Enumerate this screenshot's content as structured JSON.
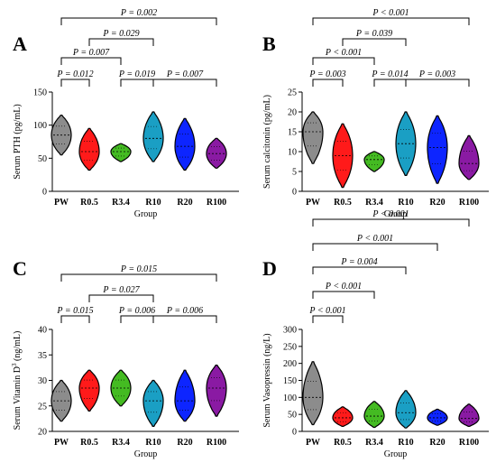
{
  "palette": {
    "PW": "#8c8c8c",
    "R0.5": "#ff1a1a",
    "R3.4": "#44bb22",
    "R10": "#1a9fc4",
    "R20": "#0d25ff",
    "R100": "#8a1aa3"
  },
  "chart_data": [
    {
      "type": "violin",
      "panel": "A",
      "ylabel": "Serum PTH (pg/mL)",
      "xlabel": "Group",
      "ylim": [
        0,
        150
      ],
      "yticks": [
        0,
        50,
        100,
        150
      ],
      "categories": [
        "PW",
        "R0.5",
        "R3.4",
        "R10",
        "R20",
        "R100"
      ],
      "ranges": [
        [
          55,
          115
        ],
        [
          32,
          95
        ],
        [
          45,
          72
        ],
        [
          45,
          120
        ],
        [
          32,
          110
        ],
        [
          35,
          80
        ]
      ],
      "medians": [
        85,
        60,
        60,
        80,
        68,
        57
      ],
      "comparisons": [
        {
          "from": "PW",
          "to": "R0.5",
          "label": "P = 0.012"
        },
        {
          "from": "R3.4",
          "to": "R10",
          "label": "P = 0.019"
        },
        {
          "from": "R10",
          "to": "R100",
          "label": "P = 0.007"
        },
        {
          "from": "PW",
          "to": "R3.4",
          "label": "P = 0.007"
        },
        {
          "from": "R0.5",
          "to": "R10",
          "label": "P = 0.029"
        },
        {
          "from": "PW",
          "to": "R100",
          "label": "P = 0.002"
        }
      ]
    },
    {
      "type": "violin",
      "panel": "B",
      "ylabel": "Serum calcitonin (pg/mL)",
      "xlabel": "Group",
      "ylim": [
        0,
        25
      ],
      "yticks": [
        0,
        5,
        10,
        15,
        20,
        25
      ],
      "categories": [
        "PW",
        "R0.5",
        "R3.4",
        "R10",
        "R20",
        "R100"
      ],
      "ranges": [
        [
          7,
          20
        ],
        [
          1,
          17
        ],
        [
          5,
          10
        ],
        [
          4,
          20
        ],
        [
          2,
          19
        ],
        [
          3,
          14
        ]
      ],
      "medians": [
        15,
        9,
        8,
        12,
        11,
        7
      ],
      "comparisons": [
        {
          "from": "PW",
          "to": "R0.5",
          "label": "P = 0.003"
        },
        {
          "from": "R3.4",
          "to": "R10",
          "label": "P = 0.014"
        },
        {
          "from": "R10",
          "to": "R100",
          "label": "P = 0.003"
        },
        {
          "from": "PW",
          "to": "R3.4",
          "label": "P < 0.001"
        },
        {
          "from": "R0.5",
          "to": "R10",
          "label": "P = 0.039"
        },
        {
          "from": "PW",
          "to": "R100",
          "label": "P < 0.001"
        }
      ]
    },
    {
      "type": "violin",
      "panel": "C",
      "ylabel": "Serum Vitamin D",
      "ylabel_sup": "3",
      "ylabel_unit": " (ng/mL)",
      "xlabel": "Group",
      "ylim": [
        20,
        40
      ],
      "yticks": [
        20,
        25,
        30,
        35,
        40
      ],
      "categories": [
        "PW",
        "R0.5",
        "R3.4",
        "R10",
        "R20",
        "R100"
      ],
      "ranges": [
        [
          22,
          30
        ],
        [
          24,
          32
        ],
        [
          25,
          32
        ],
        [
          21,
          30
        ],
        [
          22,
          32
        ],
        [
          23,
          33
        ]
      ],
      "medians": [
        26,
        28.5,
        28.5,
        26,
        26,
        28.5
      ],
      "comparisons": [
        {
          "from": "PW",
          "to": "R0.5",
          "label": "P = 0.015"
        },
        {
          "from": "R3.4",
          "to": "R10",
          "label": "P = 0.006"
        },
        {
          "from": "R10",
          "to": "R100",
          "label": "P = 0.006"
        },
        {
          "from": "R0.5",
          "to": "R10",
          "label": "P = 0.027"
        },
        {
          "from": "PW",
          "to": "R100",
          "label": "P = 0.015"
        }
      ]
    },
    {
      "type": "violin",
      "panel": "D",
      "ylabel": "Serum Vasopressin (ng/L)",
      "xlabel": "Group",
      "ylim": [
        0,
        300
      ],
      "yticks": [
        0,
        50,
        100,
        150,
        200,
        250,
        300
      ],
      "categories": [
        "PW",
        "R0.5",
        "R3.4",
        "R10",
        "R20",
        "R100"
      ],
      "ranges": [
        [
          20,
          205
        ],
        [
          15,
          72
        ],
        [
          12,
          88
        ],
        [
          10,
          120
        ],
        [
          18,
          65
        ],
        [
          15,
          80
        ]
      ],
      "medians": [
        100,
        40,
        45,
        55,
        40,
        38
      ],
      "comparisons": [
        {
          "from": "PW",
          "to": "R0.5",
          "label": "P < 0.001"
        },
        {
          "from": "PW",
          "to": "R3.4",
          "label": "P < 0.001"
        },
        {
          "from": "PW",
          "to": "R10",
          "label": "P = 0.004"
        },
        {
          "from": "PW",
          "to": "R20",
          "label": "P < 0.001"
        },
        {
          "from": "PW",
          "to": "R100",
          "label": "P < 0.001"
        }
      ]
    }
  ]
}
